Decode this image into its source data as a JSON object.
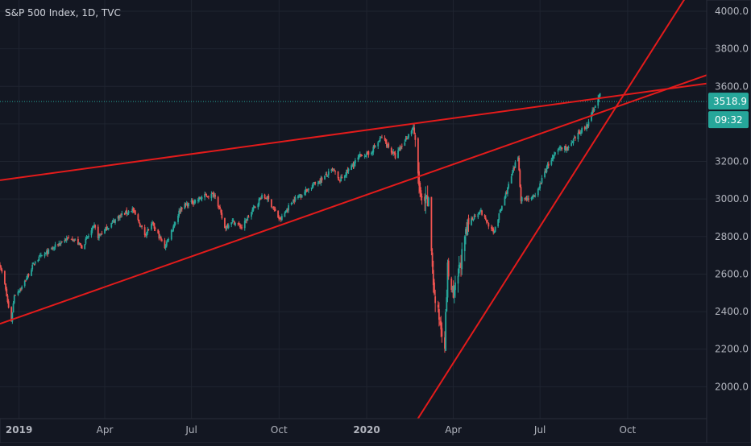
{
  "header": {
    "title": "S&P 500 Index, 1D, TVC"
  },
  "colors": {
    "background": "#131722",
    "grid": "#1f2430",
    "up": "#26a69a",
    "down": "#ef5350",
    "trendline": "#e31b1b",
    "price_label": "#26a69a",
    "axis_text": "#b2b5be"
  },
  "chart_data": {
    "type": "candlestick",
    "title": "S&P 500 Index, 1D, TVC",
    "y_ticks": [
      "2000.0",
      "2200.0",
      "2400.0",
      "2600.0",
      "2800.0",
      "3000.0",
      "3200.0",
      "3400.0",
      "3600.0",
      "3800.0",
      "4000.0"
    ],
    "ylim": [
      1830,
      4060
    ],
    "x_tick_labels": [
      {
        "date": "2019-01-01",
        "label": "2019",
        "bold": true
      },
      {
        "date": "2019-04-01",
        "label": "Apr"
      },
      {
        "date": "2019-07-01",
        "label": "Jul"
      },
      {
        "date": "2019-10-01",
        "label": "Oct"
      },
      {
        "date": "2020-01-01",
        "label": "2020",
        "bold": true
      },
      {
        "date": "2020-04-01",
        "label": "Apr"
      },
      {
        "date": "2020-07-01",
        "label": "Jul"
      },
      {
        "date": "2020-10-01",
        "label": "Oct"
      }
    ],
    "xlim": [
      "2018-12-12",
      "2020-12-23"
    ],
    "last_price": "3518.9",
    "countdown": "09:32",
    "grid": true,
    "price_anchors": [
      [
        "2018-12-12",
        2650
      ],
      [
        "2018-12-17",
        2545
      ],
      [
        "2018-12-21",
        2420
      ],
      [
        "2018-12-24",
        2351
      ],
      [
        "2018-12-27",
        2490
      ],
      [
        "2019-01-04",
        2530
      ],
      [
        "2019-01-18",
        2670
      ],
      [
        "2019-02-05",
        2735
      ],
      [
        "2019-02-15",
        2775
      ],
      [
        "2019-02-25",
        2795
      ],
      [
        "2019-03-08",
        2745
      ],
      [
        "2019-03-21",
        2855
      ],
      [
        "2019-03-25",
        2800
      ],
      [
        "2019-04-15",
        2905
      ],
      [
        "2019-04-30",
        2945
      ],
      [
        "2019-05-13",
        2812
      ],
      [
        "2019-05-21",
        2865
      ],
      [
        "2019-06-03",
        2745
      ],
      [
        "2019-06-20",
        2955
      ],
      [
        "2019-07-15",
        3015
      ],
      [
        "2019-07-26",
        3025
      ],
      [
        "2019-08-05",
        2845
      ],
      [
        "2019-08-12",
        2885
      ],
      [
        "2019-08-23",
        2850
      ],
      [
        "2019-09-12",
        3010
      ],
      [
        "2019-09-19",
        3005
      ],
      [
        "2019-10-02",
        2885
      ],
      [
        "2019-10-15",
        2990
      ],
      [
        "2019-10-28",
        3040
      ],
      [
        "2019-11-27",
        3155
      ],
      [
        "2019-12-03",
        3095
      ],
      [
        "2019-12-27",
        3240
      ],
      [
        "2020-01-03",
        3235
      ],
      [
        "2020-01-17",
        3330
      ],
      [
        "2020-01-31",
        3225
      ],
      [
        "2020-02-19",
        3386
      ],
      [
        "2020-02-27",
        2980
      ],
      [
        "2020-03-06",
        2975
      ],
      [
        "2020-03-12",
        2480
      ],
      [
        "2020-03-16",
        2386
      ],
      [
        "2020-03-23",
        2237
      ],
      [
        "2020-03-26",
        2630
      ],
      [
        "2020-04-01",
        2470
      ],
      [
        "2020-04-17",
        2875
      ],
      [
        "2020-04-29",
        2940
      ],
      [
        "2020-05-13",
        2820
      ],
      [
        "2020-06-08",
        3230
      ],
      [
        "2020-06-11",
        3000
      ],
      [
        "2020-06-26",
        3010
      ],
      [
        "2020-07-08",
        3170
      ],
      [
        "2020-07-22",
        3275
      ],
      [
        "2020-07-31",
        3270
      ],
      [
        "2020-08-14",
        3370
      ],
      [
        "2020-08-21",
        3400
      ],
      [
        "2020-08-28",
        3510
      ],
      [
        "2020-09-02",
        3550
      ]
    ],
    "trendlines": [
      {
        "from": [
          "2018-12-12",
          3100
        ],
        "to": [
          "2020-12-23",
          3615
        ]
      },
      {
        "from": [
          "2018-12-12",
          2335
        ],
        "to": [
          "2020-12-23",
          3660
        ]
      },
      {
        "from": [
          "2020-01-31",
          1640
        ],
        "to": [
          "2020-12-23",
          4250
        ]
      }
    ]
  }
}
